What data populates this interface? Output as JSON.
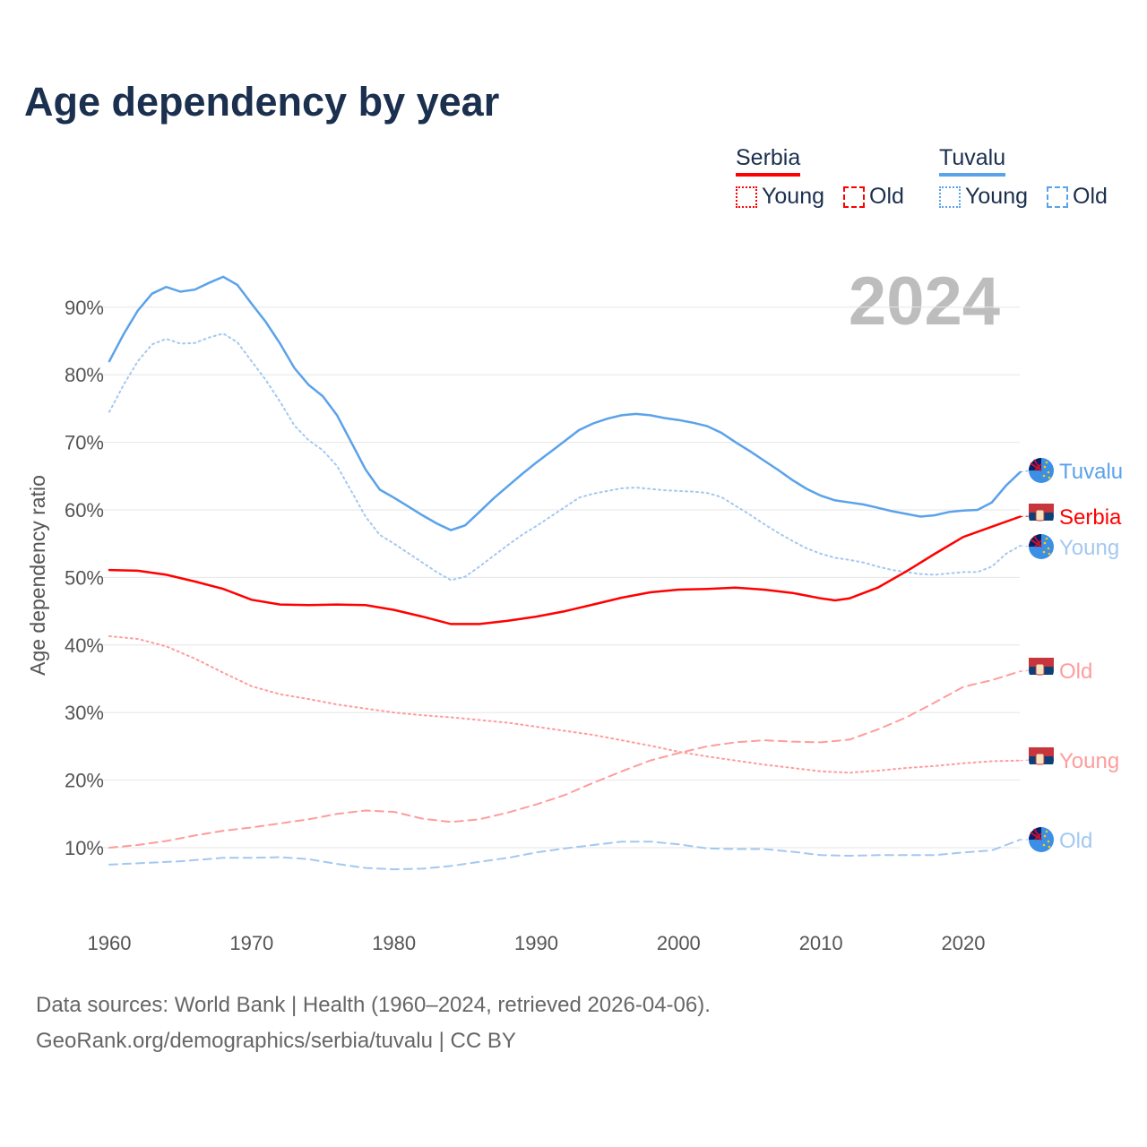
{
  "chart_data": {
    "type": "line",
    "title": "Age dependency by year",
    "ylabel": "Age dependency ratio",
    "xlabel": "",
    "year_label": "2024",
    "xlim": [
      1960,
      2024
    ],
    "ylim": [
      0,
      100
    ],
    "x_ticks": [
      1960,
      1970,
      1980,
      1990,
      2000,
      2010,
      2020
    ],
    "y_ticks": [
      10,
      20,
      30,
      40,
      50,
      60,
      70,
      80,
      90
    ],
    "y_tick_labels": [
      "10%",
      "20%",
      "30%",
      "40%",
      "50%",
      "60%",
      "70%",
      "80%",
      "90%"
    ],
    "legend": {
      "countries": [
        {
          "name": "Serbia",
          "color": "#ff0000",
          "light": "#ff9c9c",
          "items": [
            "Young",
            "Old"
          ]
        },
        {
          "name": "Tuvalu",
          "color": "#5aa2ea",
          "light": "#a3c8f0",
          "items": [
            "Young",
            "Old"
          ]
        }
      ]
    },
    "series": [
      {
        "name": "Tuvalu",
        "label": "Tuvalu",
        "color": "#5aa2ea",
        "dash": "solid",
        "x": [
          1960,
          1961,
          1962,
          1963,
          1964,
          1965,
          1966,
          1967,
          1968,
          1969,
          1970,
          1971,
          1972,
          1973,
          1974,
          1975,
          1976,
          1977,
          1978,
          1979,
          1980,
          1981,
          1982,
          1983,
          1984,
          1985,
          1986,
          1987,
          1988,
          1989,
          1990,
          1991,
          1992,
          1993,
          1994,
          1995,
          1996,
          1997,
          1998,
          1999,
          2000,
          2001,
          2002,
          2003,
          2004,
          2005,
          2006,
          2007,
          2008,
          2009,
          2010,
          2011,
          2012,
          2013,
          2014,
          2015,
          2016,
          2017,
          2018,
          2019,
          2020,
          2021,
          2022,
          2023,
          2024
        ],
        "values": [
          82,
          86,
          89.5,
          92,
          93,
          92.3,
          92.6,
          93.6,
          94.5,
          93.3,
          90.5,
          87.8,
          84.6,
          81,
          78.5,
          76.8,
          74,
          70,
          66,
          63,
          61.8,
          60.5,
          59.2,
          58,
          57,
          57.7,
          59.7,
          61.7,
          63.5,
          65.3,
          67,
          68.6,
          70.2,
          71.8,
          72.8,
          73.5,
          74,
          74.2,
          74,
          73.6,
          73.3,
          72.9,
          72.4,
          71.4,
          70,
          68.7,
          67.3,
          65.9,
          64.4,
          63.1,
          62.1,
          61.4,
          61.1,
          60.8,
          60.3,
          59.8,
          59.4,
          59,
          59.2,
          59.7,
          59.9,
          60,
          61.1,
          63.6,
          65.6
        ]
      },
      {
        "name": "Tuvalu Young",
        "label": "Young",
        "color": "#a3c8f0",
        "dash": "dotted",
        "x": [
          1960,
          1961,
          1962,
          1963,
          1964,
          1965,
          1966,
          1967,
          1968,
          1969,
          1970,
          1971,
          1972,
          1973,
          1974,
          1975,
          1976,
          1977,
          1978,
          1979,
          1980,
          1981,
          1982,
          1983,
          1984,
          1985,
          1986,
          1987,
          1988,
          1989,
          1990,
          1991,
          1992,
          1993,
          1994,
          1995,
          1996,
          1997,
          1998,
          1999,
          2000,
          2001,
          2002,
          2003,
          2004,
          2005,
          2006,
          2007,
          2008,
          2009,
          2010,
          2011,
          2012,
          2013,
          2014,
          2015,
          2016,
          2017,
          2018,
          2019,
          2020,
          2021,
          2022,
          2023,
          2024
        ],
        "values": [
          74.5,
          78.5,
          82,
          84.5,
          85.3,
          84.6,
          84.7,
          85.5,
          86.1,
          84.8,
          82,
          79.2,
          76,
          72.5,
          70.3,
          68.8,
          66.5,
          62.8,
          59,
          56.3,
          55,
          53.6,
          52.2,
          50.8,
          49.6,
          50.1,
          51.6,
          53.2,
          54.8,
          56.3,
          57.6,
          59,
          60.4,
          61.8,
          62.4,
          62.8,
          63.2,
          63.3,
          63.1,
          62.9,
          62.8,
          62.7,
          62.5,
          61.9,
          60.6,
          59.3,
          57.9,
          56.6,
          55.4,
          54.3,
          53.5,
          52.9,
          52.6,
          52.2,
          51.6,
          51.1,
          50.8,
          50.5,
          50.4,
          50.6,
          50.8,
          50.8,
          51.6,
          53.5,
          54.7
        ]
      },
      {
        "name": "Tuvalu Old",
        "label": "Old",
        "color": "#a3c8f0",
        "dash": "dashed",
        "x": [
          1960,
          1965,
          1968,
          1970,
          1972,
          1974,
          1976,
          1978,
          1980,
          1982,
          1984,
          1986,
          1988,
          1990,
          1992,
          1994,
          1996,
          1998,
          2000,
          2002,
          2004,
          2006,
          2008,
          2010,
          2012,
          2014,
          2016,
          2018,
          2020,
          2022,
          2024
        ],
        "values": [
          7.5,
          8,
          8.5,
          8.5,
          8.6,
          8.3,
          7.6,
          7,
          6.8,
          6.9,
          7.3,
          7.9,
          8.5,
          9.3,
          9.9,
          10.4,
          10.9,
          10.9,
          10.5,
          9.9,
          9.8,
          9.8,
          9.4,
          8.9,
          8.8,
          8.9,
          8.9,
          8.9,
          9.3,
          9.6,
          11.2
        ]
      },
      {
        "name": "Serbia",
        "label": "Serbia",
        "color": "#ff0000",
        "dash": "solid",
        "x": [
          1960,
          1962,
          1964,
          1966,
          1968,
          1970,
          1972,
          1974,
          1976,
          1978,
          1980,
          1982,
          1984,
          1986,
          1988,
          1990,
          1992,
          1994,
          1996,
          1998,
          2000,
          2002,
          2004,
          2006,
          2008,
          2010,
          2011,
          2012,
          2014,
          2016,
          2018,
          2020,
          2022,
          2024
        ],
        "values": [
          51.1,
          51,
          50.4,
          49.4,
          48.3,
          46.7,
          46,
          45.9,
          46,
          45.9,
          45.2,
          44.2,
          43.1,
          43.1,
          43.6,
          44.2,
          45,
          46,
          47,
          47.8,
          48.2,
          48.3,
          48.5,
          48.2,
          47.7,
          46.9,
          46.6,
          46.9,
          48.5,
          50.9,
          53.5,
          56,
          57.5,
          59
        ]
      },
      {
        "name": "Serbia Young",
        "label": "Young",
        "color": "#ff9c9c",
        "dash": "dotted",
        "x": [
          1960,
          1962,
          1964,
          1966,
          1968,
          1970,
          1972,
          1974,
          1976,
          1978,
          1980,
          1982,
          1984,
          1986,
          1988,
          1990,
          1992,
          1994,
          1996,
          1998,
          2000,
          2002,
          2004,
          2006,
          2008,
          2010,
          2012,
          2014,
          2016,
          2018,
          2020,
          2022,
          2024
        ],
        "values": [
          41.3,
          40.9,
          39.8,
          38,
          35.9,
          33.9,
          32.7,
          32,
          31.2,
          30.6,
          30,
          29.6,
          29.3,
          28.9,
          28.5,
          27.9,
          27.3,
          26.7,
          25.9,
          25.1,
          24.2,
          23.5,
          22.9,
          22.3,
          21.8,
          21.3,
          21.1,
          21.4,
          21.8,
          22.1,
          22.5,
          22.8,
          22.9
        ]
      },
      {
        "name": "Serbia Old",
        "label": "Old",
        "color": "#ff9c9c",
        "dash": "dashed",
        "x": [
          1960,
          1962,
          1964,
          1966,
          1968,
          1970,
          1972,
          1974,
          1976,
          1978,
          1980,
          1982,
          1984,
          1986,
          1988,
          1990,
          1992,
          1994,
          1996,
          1998,
          2000,
          2002,
          2004,
          2006,
          2008,
          2010,
          2012,
          2014,
          2016,
          2018,
          2020,
          2022,
          2024
        ],
        "values": [
          10,
          10.4,
          11,
          11.8,
          12.5,
          13,
          13.6,
          14.2,
          15,
          15.5,
          15.3,
          14.3,
          13.8,
          14.2,
          15.2,
          16.4,
          17.8,
          19.6,
          21.3,
          22.9,
          24,
          25,
          25.6,
          25.9,
          25.7,
          25.6,
          26,
          27.5,
          29.3,
          31.5,
          33.8,
          34.8,
          36.1
        ]
      }
    ]
  },
  "footer": {
    "line1": "Data sources: World Bank | Health (1960–2024, retrieved 2026-04-06).",
    "line2": "GeoRank.org/demographics/serbia/tuvalu | CC BY"
  }
}
